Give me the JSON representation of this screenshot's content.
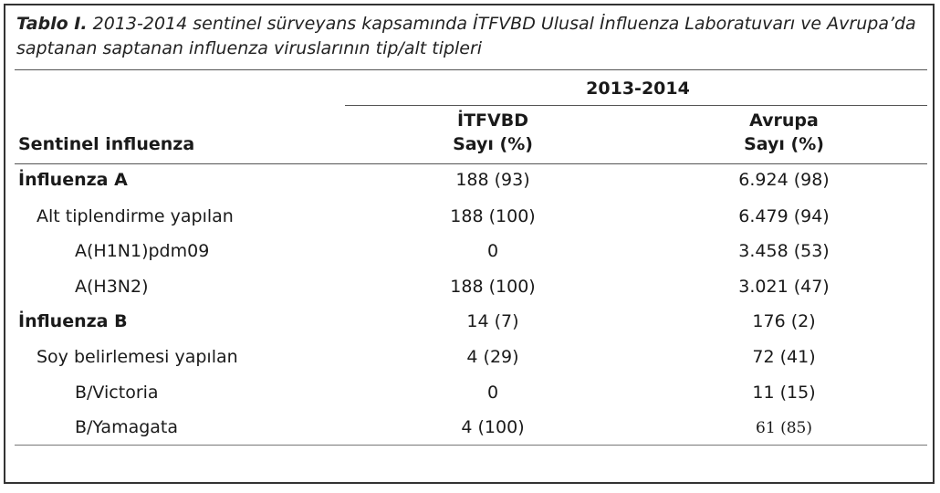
{
  "caption": {
    "label": "Tablo I.",
    "text": " 2013-2014 sentinel sürveyans kapsamında İTFVBD Ulusal İnfluenza Laboratuvarı ve Avrupa’da saptanan saptanan influenza viruslarının tip/alt tipleri"
  },
  "header": {
    "period": "2013-2014",
    "row_label": "Sentinel influenza",
    "col1_line1": "İTFVBD",
    "col1_line2": "Sayı (%)",
    "col2_line1": "Avrupa",
    "col2_line2": "Sayı (%)"
  },
  "rows": [
    {
      "label": "İnfluenza A",
      "itfvbd": "188 (93)",
      "avrupa": "6.924 (98)"
    },
    {
      "label": "Alt tiplendirme yapılan",
      "itfvbd": "188 (100)",
      "avrupa": "6.479 (94)"
    },
    {
      "label": "A(H1N1)pdm09",
      "itfvbd": "0",
      "avrupa": "3.458 (53)"
    },
    {
      "label": "A(H3N2)",
      "itfvbd": "188 (100)",
      "avrupa": "3.021 (47)"
    },
    {
      "label": "İnfluenza B",
      "itfvbd": "14 (7)",
      "avrupa": "176 (2)"
    },
    {
      "label": "Soy belirlemesi yapılan",
      "itfvbd": "4 (29)",
      "avrupa": "72 (41)"
    },
    {
      "label": "B/Victoria",
      "itfvbd": "0",
      "avrupa": "11 (15)"
    },
    {
      "label": "B/Yamagata",
      "itfvbd": "4 (100)",
      "avrupa": "61 (85)"
    }
  ]
}
